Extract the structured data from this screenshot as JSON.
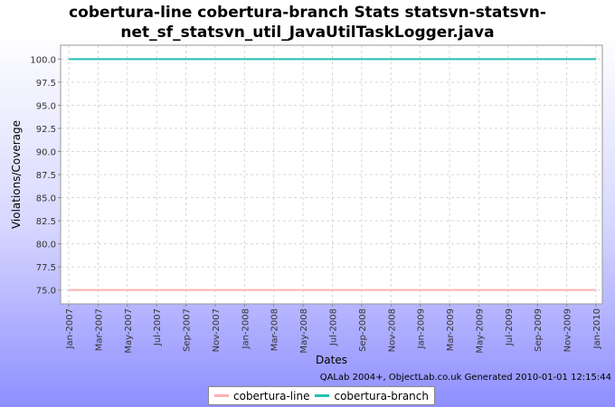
{
  "title": {
    "line1": "cobertura-line cobertura-branch  Stats statsvn-statsvn-",
    "line2": "net_sf_statsvn_util_JavaUtilTaskLogger.java"
  },
  "footer": "QALab 2004+, ObjectLab.co.uk Generated 2010-01-01 12:15:44",
  "colors": {
    "cobertura_line": "#ffb0b0",
    "cobertura_branch": "#20c0b0",
    "plot_bg": "#ffffff",
    "grid": "#d8d8d8"
  },
  "chart_data": {
    "type": "line",
    "xlabel": "Dates",
    "ylabel": "Violations/Coverage",
    "ylim": [
      73.5,
      101.5
    ],
    "yticks": [
      "75.0",
      "77.5",
      "80.0",
      "82.5",
      "85.0",
      "87.5",
      "90.0",
      "92.5",
      "95.0",
      "97.5",
      "100.0"
    ],
    "x": [
      "2007-01",
      "2010-01"
    ],
    "xticks": [
      "Jan-2007",
      "Mar-2007",
      "May-2007",
      "Jul-2007",
      "Sep-2007",
      "Nov-2007",
      "Jan-2008",
      "Mar-2008",
      "May-2008",
      "Jul-2008",
      "Sep-2008",
      "Nov-2008",
      "Jan-2009",
      "Mar-2009",
      "May-2009",
      "Jul-2009",
      "Sep-2009",
      "Nov-2009",
      "Jan-2010"
    ],
    "grid": true,
    "legend_position": "bottom",
    "series": [
      {
        "name": "cobertura-line",
        "values": [
          75.0,
          75.0
        ]
      },
      {
        "name": "cobertura-branch",
        "values": [
          100.0,
          100.0
        ]
      }
    ]
  }
}
